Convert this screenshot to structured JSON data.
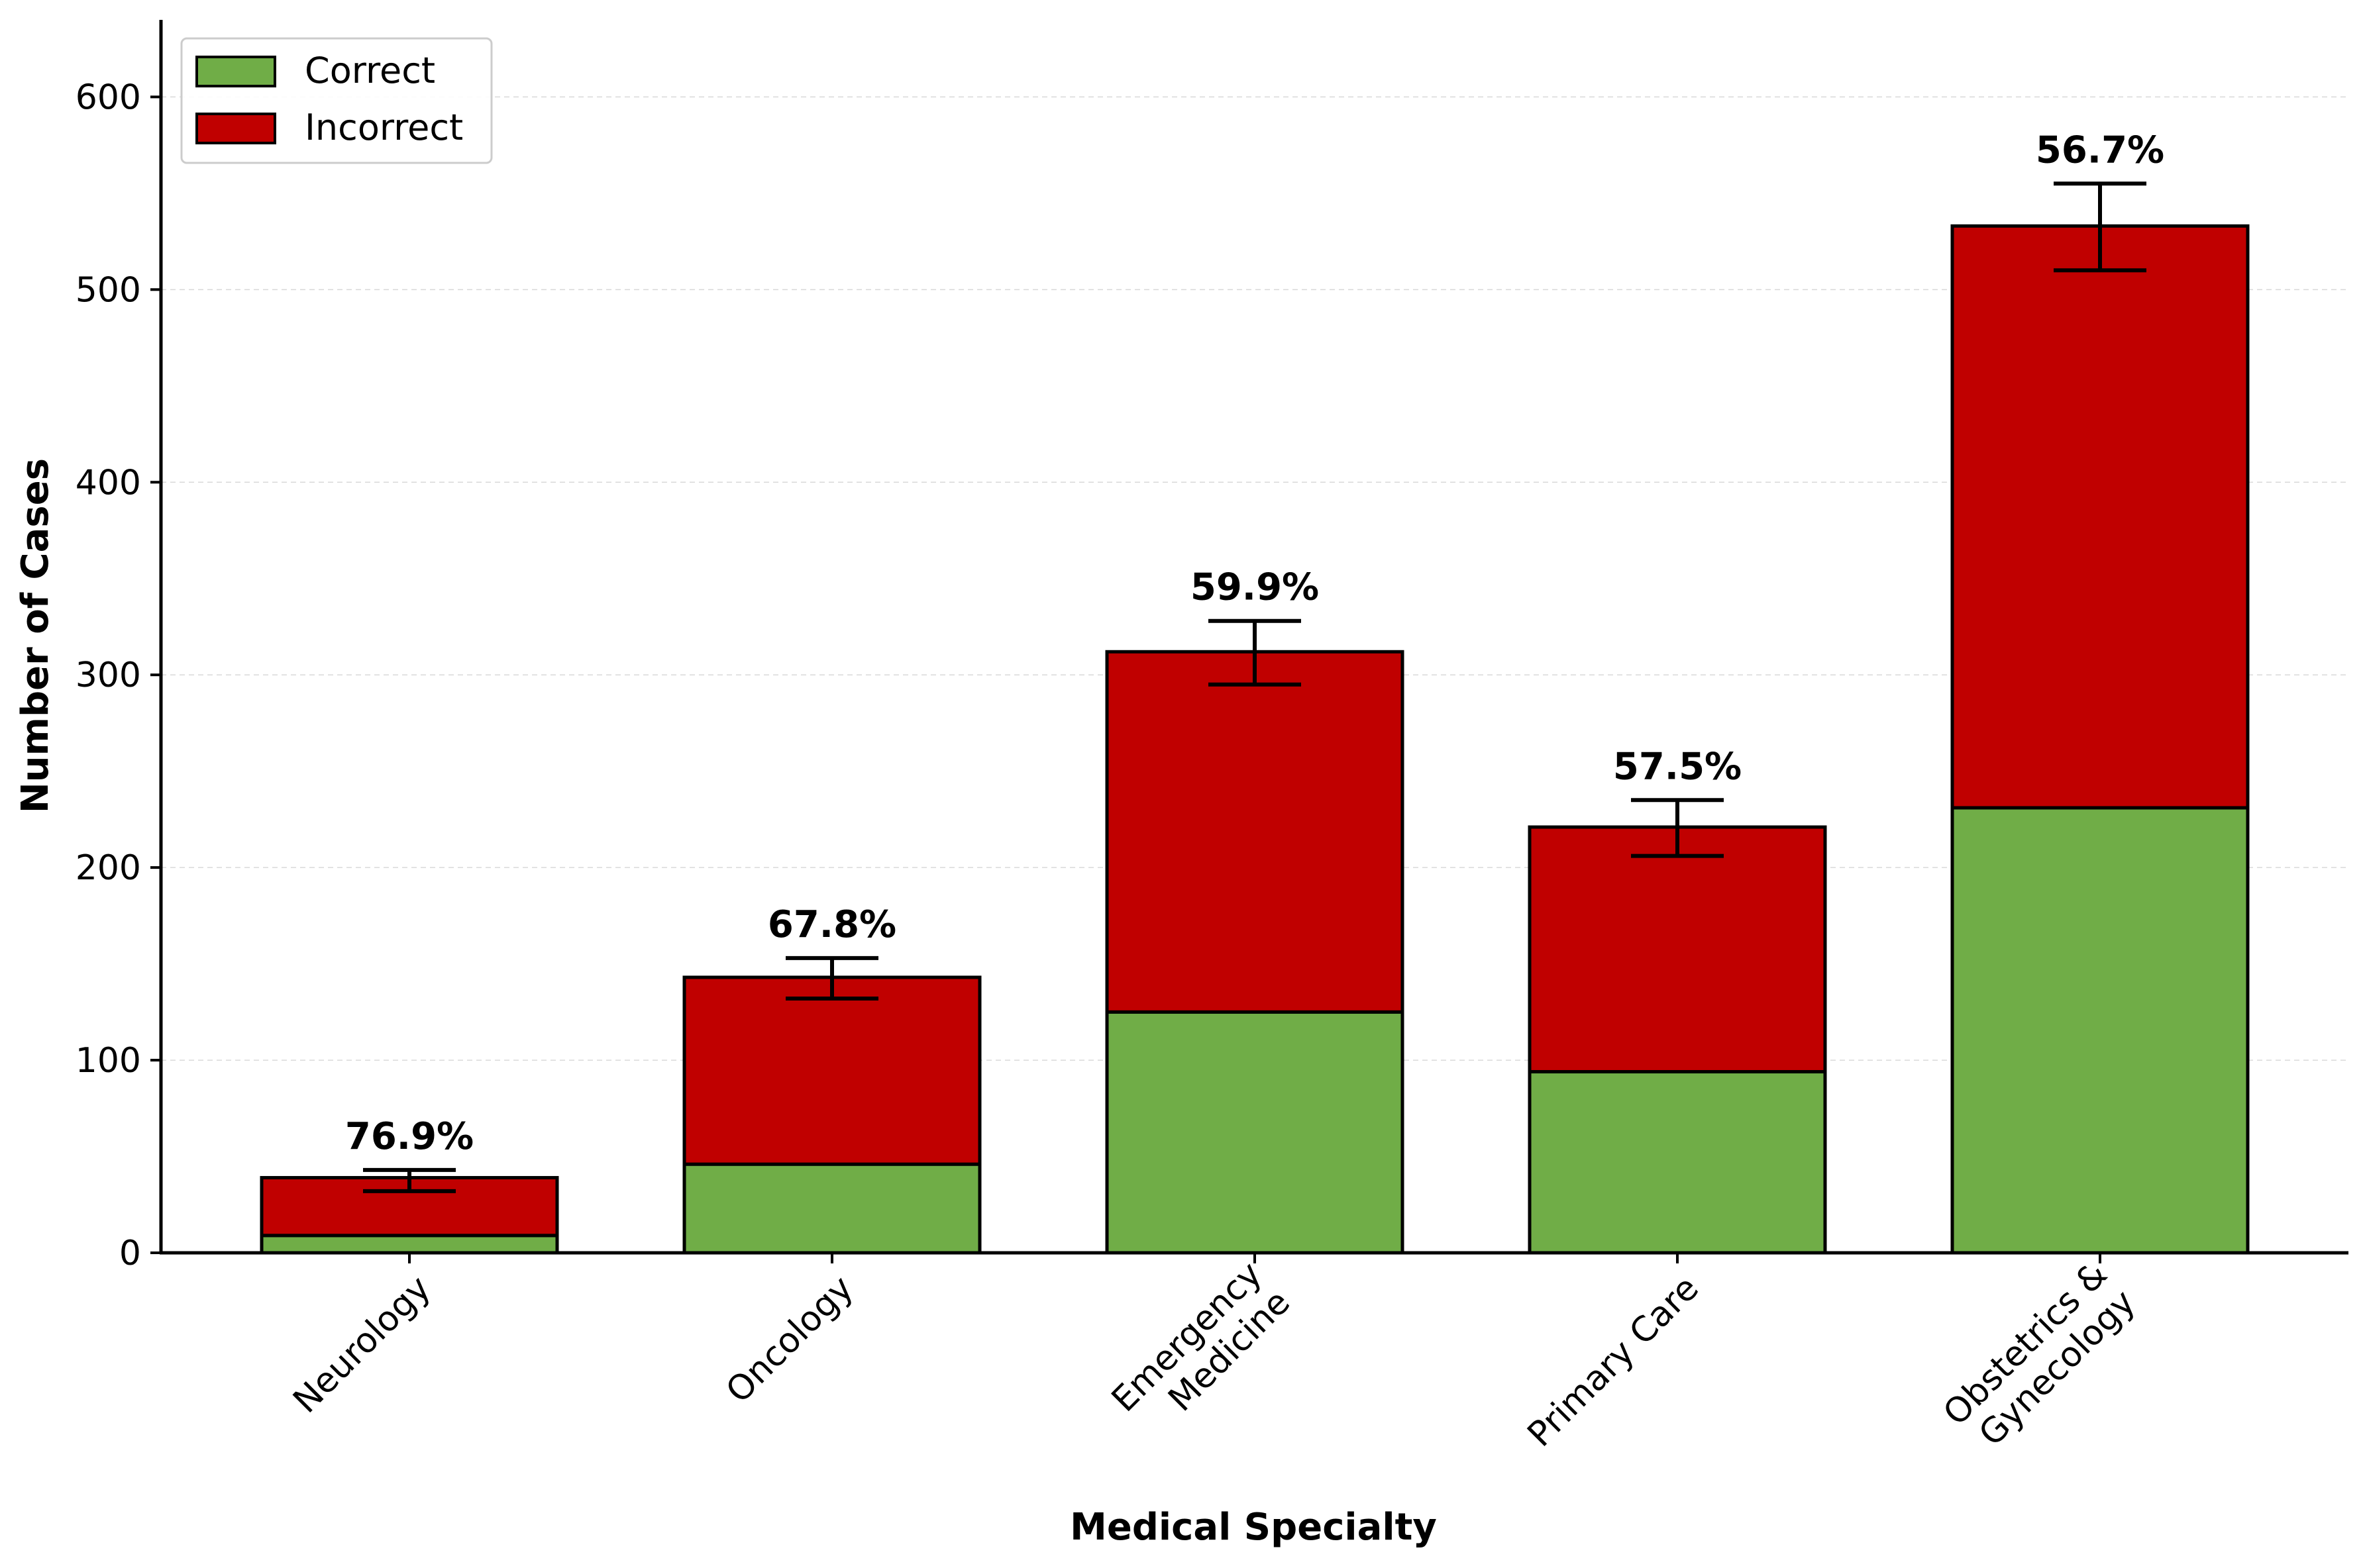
{
  "chart_data": {
    "type": "bar",
    "stacked": true,
    "title": "",
    "xlabel": "Medical Specialty",
    "ylabel": "Number of Cases",
    "ylim": [
      0,
      640
    ],
    "yticks": [
      0,
      100,
      200,
      300,
      400,
      500,
      600
    ],
    "grid": "horizontal dashed",
    "legend_position": "top-left",
    "categories": [
      [
        "Neurology"
      ],
      [
        "Oncology"
      ],
      [
        "Emergency",
        "Medicine"
      ],
      [
        "Primary Care"
      ],
      [
        "Obstetrics &",
        "Gynecology"
      ]
    ],
    "series": [
      {
        "name": "Correct",
        "color": "#70ad47",
        "values": [
          9,
          46,
          125,
          94,
          231
        ]
      },
      {
        "name": "Incorrect",
        "color": "#c00000",
        "values": [
          30,
          97,
          187,
          127,
          302
        ]
      }
    ],
    "error_bars": [
      {
        "low": 32,
        "high": 43
      },
      {
        "low": 132,
        "high": 153
      },
      {
        "low": 295,
        "high": 328
      },
      {
        "low": 206,
        "high": 235
      },
      {
        "low": 510,
        "high": 555
      }
    ],
    "data_labels": [
      "76.9%",
      "67.8%",
      "59.9%",
      "57.5%",
      "56.7%"
    ]
  }
}
